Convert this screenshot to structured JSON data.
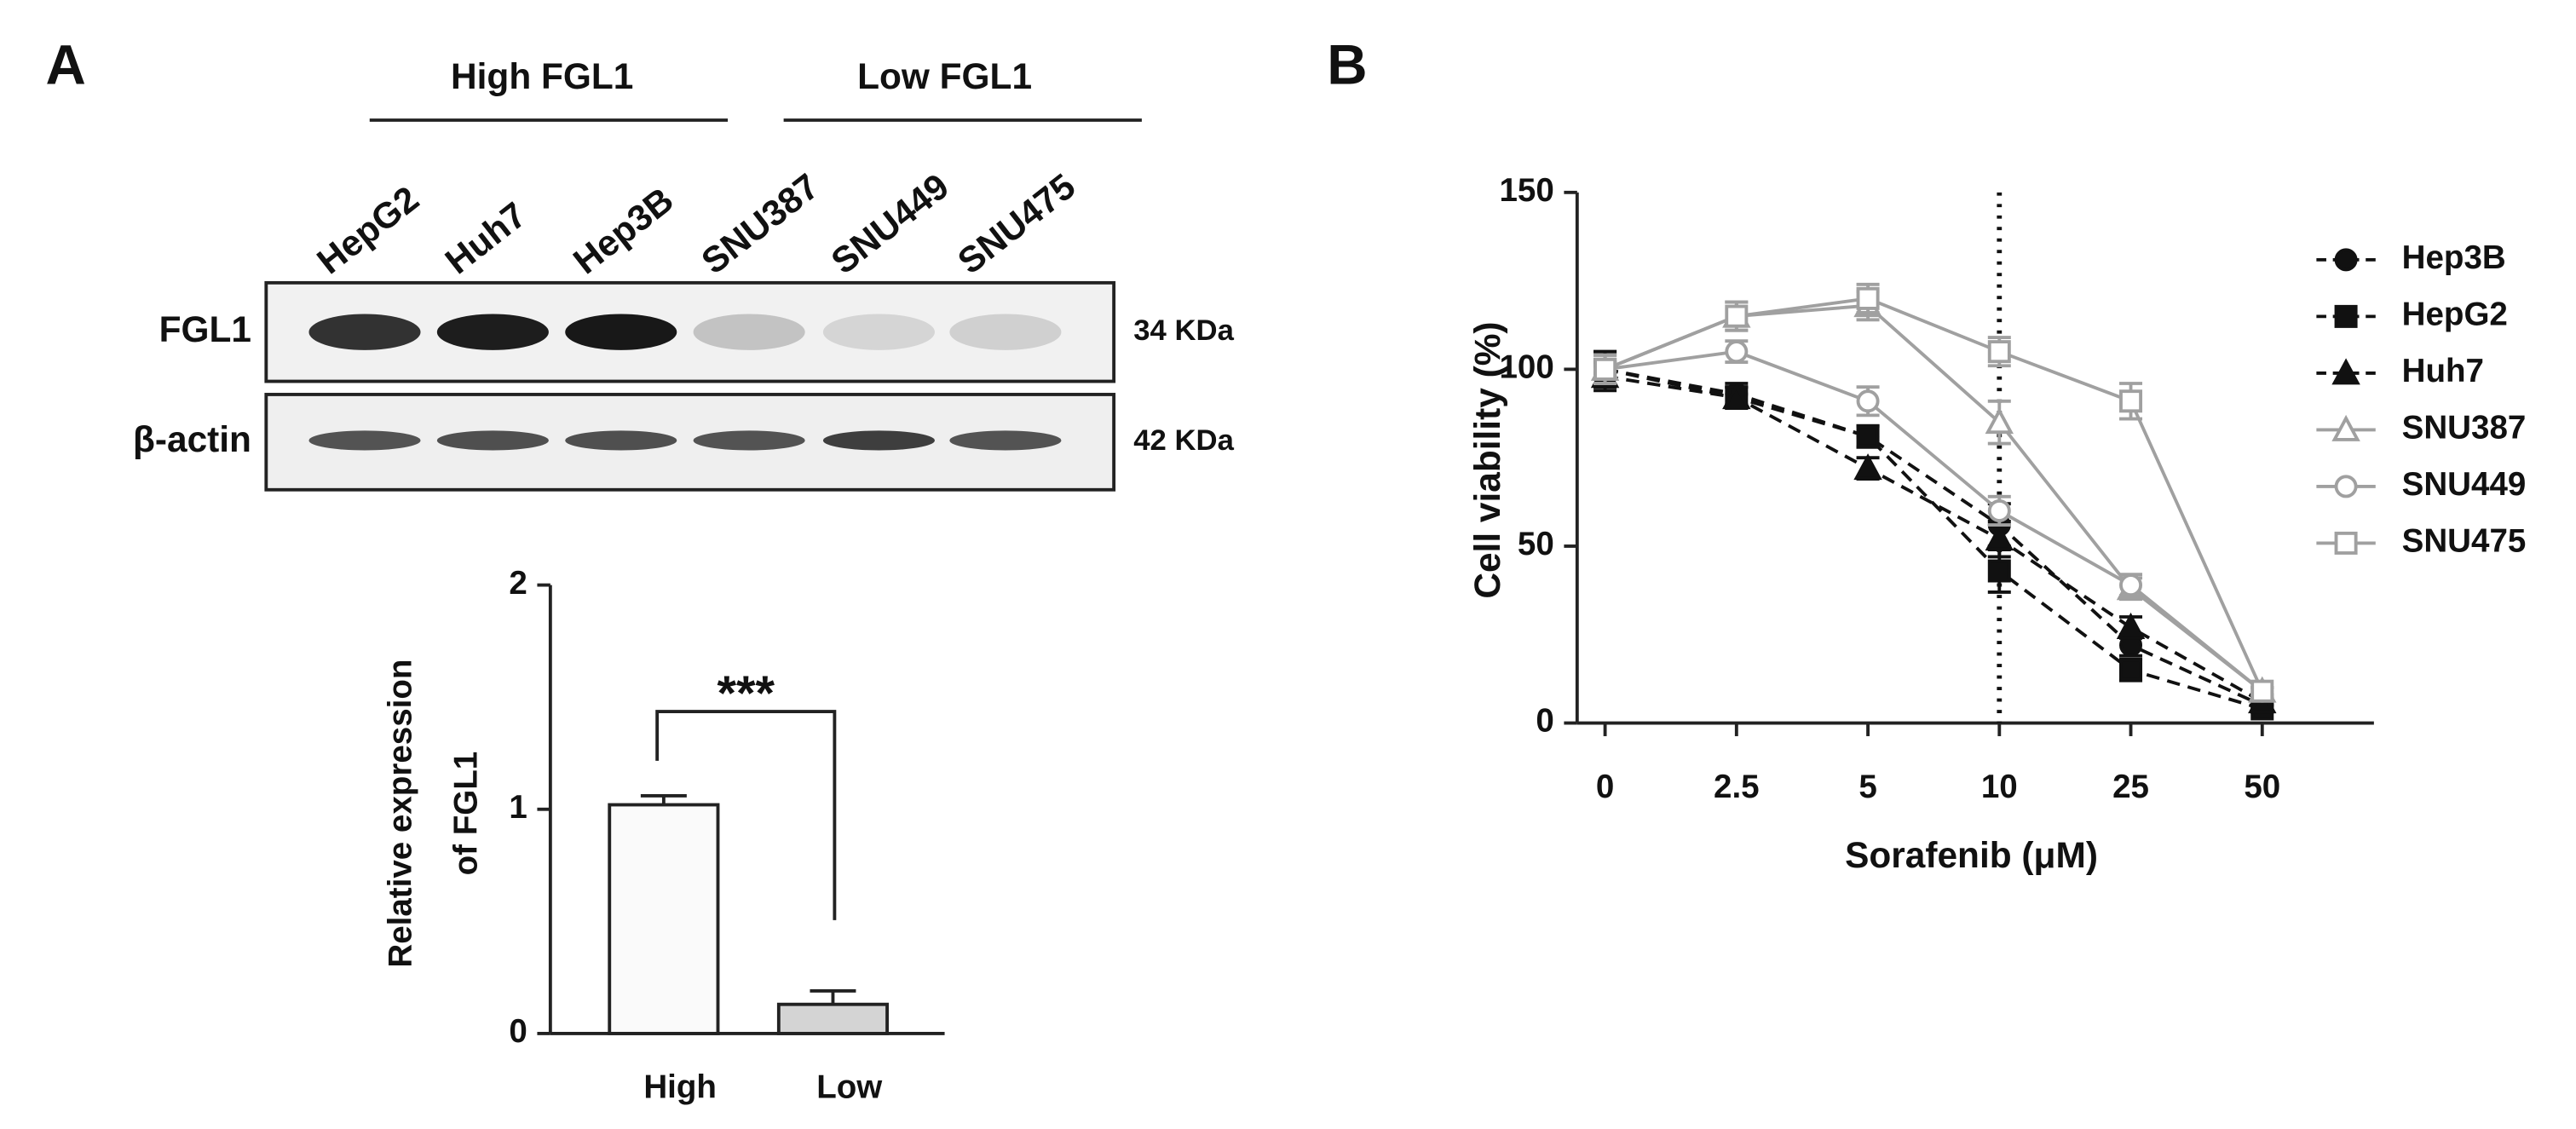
{
  "panel_labels": [
    "A",
    "B"
  ],
  "blot": {
    "groups": [
      "High FGL1",
      "Low FGL1"
    ],
    "lanes": [
      "HepG2",
      "Huh7",
      "Hep3B",
      "SNU387",
      "SNU449",
      "SNU475"
    ],
    "rows": [
      {
        "label": "FGL1",
        "size": "34 KDa"
      },
      {
        "label": "β-actin",
        "size": "42 KDa"
      }
    ]
  },
  "chart_data": [
    {
      "type": "bar",
      "ylabel": [
        "Relative expression",
        "of FGL1"
      ],
      "categories": [
        "High",
        "Low"
      ],
      "values": [
        1.02,
        0.13
      ],
      "errors": [
        0.04,
        0.06
      ],
      "colors": [
        "#fafafa",
        "#d4d4d4"
      ],
      "ylim": [
        0,
        2
      ],
      "yticks": [
        0,
        1,
        2
      ],
      "annotation": "***"
    },
    {
      "type": "line",
      "xlabel": "Sorafenib (μM)",
      "ylabel": "Cell viability (%)",
      "categories": [
        "0",
        "2.5",
        "5",
        "10",
        "25",
        "50"
      ],
      "ylim": [
        0,
        150
      ],
      "yticks": [
        0,
        50,
        100,
        150
      ],
      "vline_at": "10",
      "series": [
        {
          "name": "Hep3B",
          "color": "#111111",
          "marker": "circle",
          "filled": true,
          "dashed": true,
          "values": [
            100,
            93,
            81,
            56,
            22,
            5
          ],
          "errors": [
            5,
            3,
            3,
            6,
            3,
            1
          ]
        },
        {
          "name": "HepG2",
          "color": "#111111",
          "marker": "square",
          "filled": true,
          "dashed": true,
          "values": [
            100,
            92,
            81,
            43,
            15,
            4
          ],
          "errors": [
            5,
            3,
            3,
            6,
            3,
            1
          ]
        },
        {
          "name": "Huh7",
          "color": "#111111",
          "marker": "triangle",
          "filled": true,
          "dashed": true,
          "values": [
            98,
            92,
            72,
            52,
            27,
            6
          ],
          "errors": [
            4,
            3,
            3,
            5,
            3,
            1
          ]
        },
        {
          "name": "SNU387",
          "color": "#a0a0a0",
          "marker": "triangle",
          "filled": false,
          "dashed": false,
          "values": [
            100,
            115,
            118,
            85,
            38,
            9
          ],
          "errors": [
            4,
            4,
            4,
            6,
            3,
            1
          ]
        },
        {
          "name": "SNU449",
          "color": "#a0a0a0",
          "marker": "circle",
          "filled": false,
          "dashed": false,
          "values": [
            100,
            105,
            91,
            60,
            39,
            9
          ],
          "errors": [
            4,
            3,
            4,
            4,
            3,
            1
          ]
        },
        {
          "name": "SNU475",
          "color": "#a0a0a0",
          "marker": "square",
          "filled": false,
          "dashed": false,
          "values": [
            100,
            115,
            120,
            105,
            91,
            9
          ],
          "errors": [
            4,
            4,
            4,
            4,
            5,
            1
          ]
        }
      ]
    }
  ]
}
